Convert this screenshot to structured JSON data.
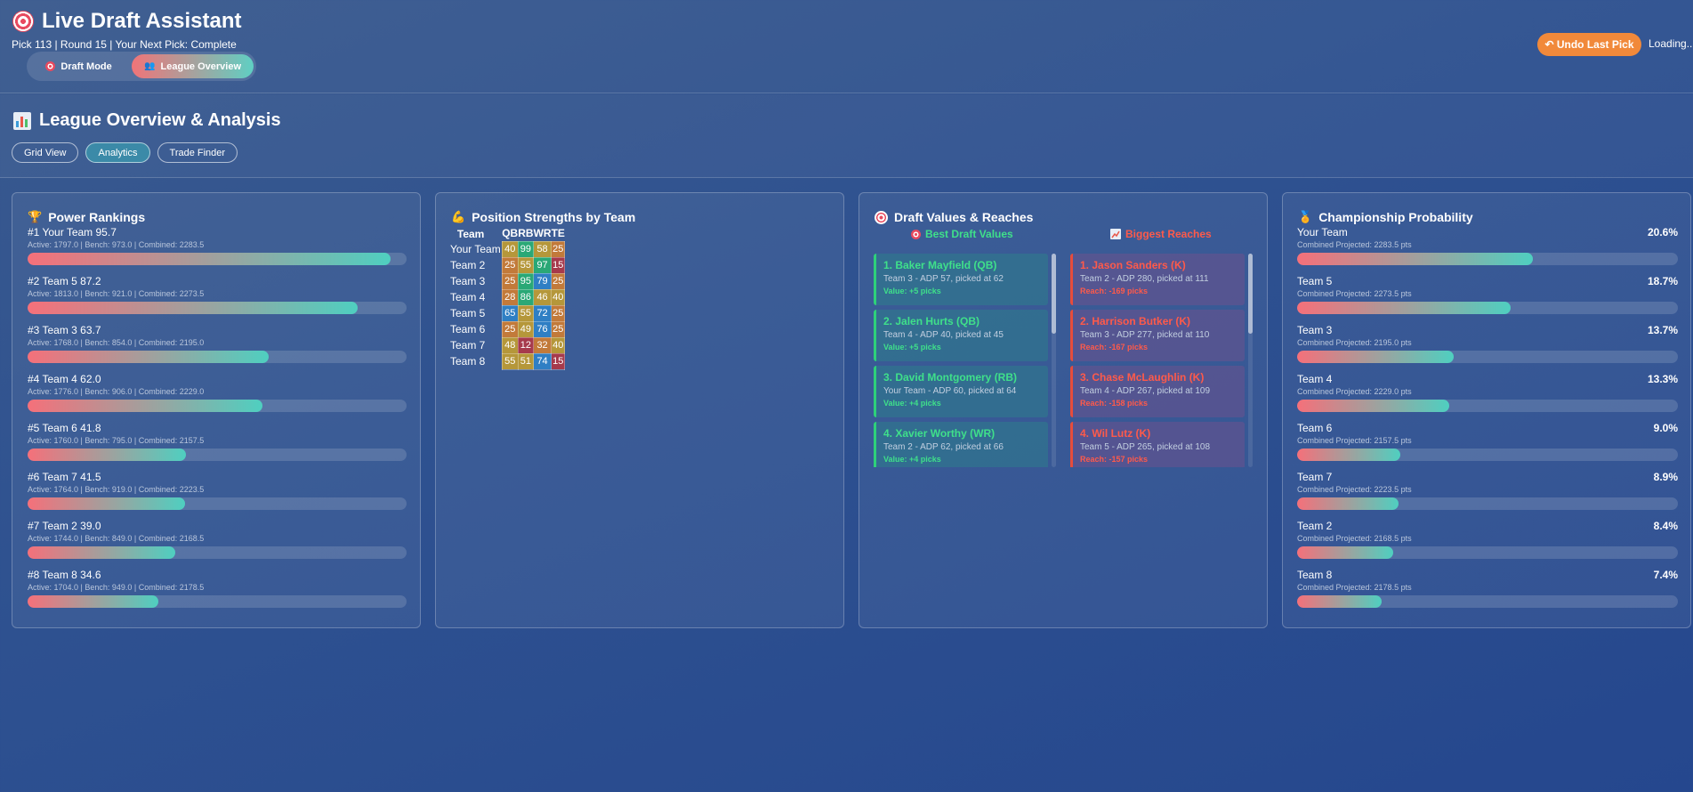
{
  "header": {
    "title": "Live Draft Assistant",
    "status": "Pick 113 | Round 15 | Your Next Pick: Complete",
    "modes": [
      {
        "label": "Draft Mode",
        "icon": "target-icon",
        "active": false
      },
      {
        "label": "League Overview",
        "icon": "people-icon",
        "active": true
      }
    ],
    "undo_label": "↶ Undo Last Pick",
    "loading_text": "Loading...",
    "colors": {
      "undo": "#f1893a",
      "accent_start": "#f07478",
      "accent_end": "#5fcfc3"
    }
  },
  "section": {
    "title": "League Overview & Analysis",
    "icon": "chart-icon",
    "tabs": [
      {
        "label": "Grid View",
        "active": false
      },
      {
        "label": "Analytics",
        "active": true
      },
      {
        "label": "Trade Finder",
        "active": false
      }
    ]
  },
  "power_rankings": {
    "title": "Power Rankings",
    "icon": "trophy-icon",
    "items": [
      {
        "title": "#1 Your Team 95.7",
        "detail": "Active: 1797.0 | Bench: 973.0 | Combined: 2283.5",
        "score": 95.7
      },
      {
        "title": "#2 Team 5 87.2",
        "detail": "Active: 1813.0 | Bench: 921.0 | Combined: 2273.5",
        "score": 87.2
      },
      {
        "title": "#3 Team 3 63.7",
        "detail": "Active: 1768.0 | Bench: 854.0 | Combined: 2195.0",
        "score": 63.7
      },
      {
        "title": "#4 Team 4 62.0",
        "detail": "Active: 1776.0 | Bench: 906.0 | Combined: 2229.0",
        "score": 62.0
      },
      {
        "title": "#5 Team 6 41.8",
        "detail": "Active: 1760.0 | Bench: 795.0 | Combined: 2157.5",
        "score": 41.8
      },
      {
        "title": "#6 Team 7 41.5",
        "detail": "Active: 1764.0 | Bench: 919.0 | Combined: 2223.5",
        "score": 41.5
      },
      {
        "title": "#7 Team 2 39.0",
        "detail": "Active: 1744.0 | Bench: 849.0 | Combined: 2168.5",
        "score": 39.0
      },
      {
        "title": "#8 Team 8 34.6",
        "detail": "Active: 1704.0 | Bench: 949.0 | Combined: 2178.5",
        "score": 34.6
      }
    ]
  },
  "position_strengths": {
    "title": "Position Strengths by Team",
    "icon": "muscle-icon",
    "headers": [
      "Team",
      "QB",
      "RB",
      "WR",
      "TE"
    ],
    "rows": [
      {
        "team": "Your Team",
        "values": [
          40,
          99,
          58,
          25
        ]
      },
      {
        "team": "Team 2",
        "values": [
          25,
          55,
          97,
          15
        ]
      },
      {
        "team": "Team 3",
        "values": [
          25,
          95,
          79,
          25
        ]
      },
      {
        "team": "Team 4",
        "values": [
          28,
          86,
          46,
          40
        ]
      },
      {
        "team": "Team 5",
        "values": [
          65,
          55,
          72,
          25
        ]
      },
      {
        "team": "Team 6",
        "values": [
          25,
          49,
          76,
          25
        ]
      },
      {
        "team": "Team 7",
        "values": [
          48,
          12,
          32,
          40
        ]
      },
      {
        "team": "Team 8",
        "values": [
          55,
          51,
          74,
          15
        ]
      }
    ],
    "cell_colors": {
      "high": "#2aa876",
      "blue": "#2f7fc4",
      "mid": "#b5973a",
      "low": "#a63a4c",
      "orange": "#c27a3a"
    }
  },
  "draft_values": {
    "title": "Draft Values & Reaches",
    "icon": "target-icon",
    "values_heading": "Best Draft Values",
    "values_icon": "target-icon",
    "reaches_heading": "Biggest Reaches",
    "reaches_icon": "chart-up-icon",
    "values": [
      {
        "name": "1. Baker Mayfield (QB)",
        "detail": "Team 3 - ADP 57, picked at 62",
        "delta": "Value: +5 picks"
      },
      {
        "name": "2. Jalen Hurts (QB)",
        "detail": "Team 4 - ADP 40, picked at 45",
        "delta": "Value: +5 picks"
      },
      {
        "name": "3. David Montgomery (RB)",
        "detail": "Your Team - ADP 60, picked at 64",
        "delta": "Value: +4 picks"
      },
      {
        "name": "4. Xavier Worthy (WR)",
        "detail": "Team 2 - ADP 62, picked at 66",
        "delta": "Value: +4 picks"
      }
    ],
    "reaches": [
      {
        "name": "1. Jason Sanders (K)",
        "detail": "Team 2 - ADP 280, picked at 111",
        "delta": "Reach: -169 picks"
      },
      {
        "name": "2. Harrison Butker (K)",
        "detail": "Team 3 - ADP 277, picked at 110",
        "delta": "Reach: -167 picks"
      },
      {
        "name": "3. Chase McLaughlin (K)",
        "detail": "Team 4 - ADP 267, picked at 109",
        "delta": "Reach: -158 picks"
      },
      {
        "name": "4. Wil Lutz (K)",
        "detail": "Team 5 - ADP 265, picked at 108",
        "delta": "Reach: -157 picks"
      }
    ]
  },
  "championship": {
    "title": "Championship Probability",
    "icon": "medal-icon",
    "items": [
      {
        "team": "Your Team",
        "pct": "20.6%",
        "detail": "Combined Projected: 2283.5 pts",
        "fill": 0.618
      },
      {
        "team": "Team 5",
        "pct": "18.7%",
        "detail": "Combined Projected: 2273.5 pts",
        "fill": 0.561
      },
      {
        "team": "Team 3",
        "pct": "13.7%",
        "detail": "Combined Projected: 2195.0 pts",
        "fill": 0.411
      },
      {
        "team": "Team 4",
        "pct": "13.3%",
        "detail": "Combined Projected: 2229.0 pts",
        "fill": 0.399
      },
      {
        "team": "Team 6",
        "pct": "9.0%",
        "detail": "Combined Projected: 2157.5 pts",
        "fill": 0.27
      },
      {
        "team": "Team 7",
        "pct": "8.9%",
        "detail": "Combined Projected: 2223.5 pts",
        "fill": 0.267
      },
      {
        "team": "Team 2",
        "pct": "8.4%",
        "detail": "Combined Projected: 2168.5 pts",
        "fill": 0.252
      },
      {
        "team": "Team 8",
        "pct": "7.4%",
        "detail": "Combined Projected: 2178.5 pts",
        "fill": 0.222
      }
    ]
  }
}
